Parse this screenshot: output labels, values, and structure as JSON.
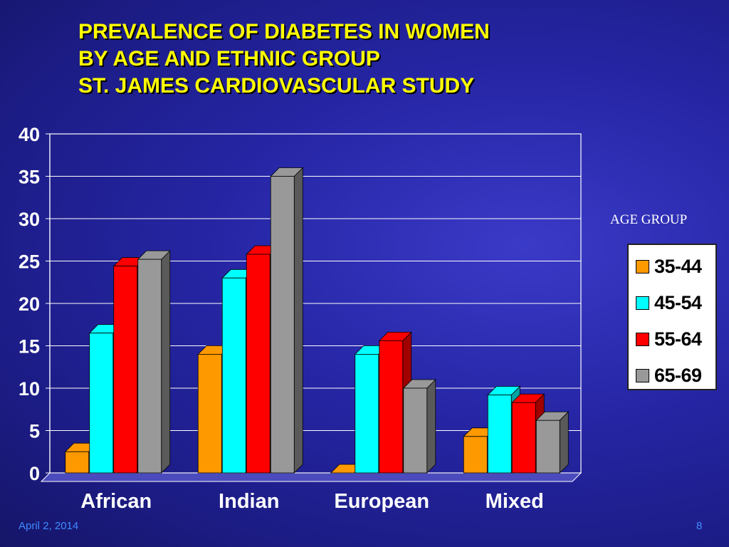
{
  "title_lines": [
    "PREVALENCE  OF  DIABETES  IN WOMEN",
    "BY  AGE  AND  ETHNIC  GROUP",
    "ST. JAMES  CARDIOVASCULAR  STUDY"
  ],
  "legend": {
    "title": "AGE GROUP",
    "items": [
      {
        "label": "35-44",
        "color": "#ff9900"
      },
      {
        "label": "45-54",
        "color": "#00ffff"
      },
      {
        "label": "55-64",
        "color": "#ff0000"
      },
      {
        "label": "65-69",
        "color": "#999999"
      }
    ]
  },
  "footer": {
    "date": "April 2, 2014",
    "page": "8"
  },
  "chart_data": {
    "type": "bar",
    "categories": [
      "African",
      "Indian",
      "European",
      "Mixed"
    ],
    "series": [
      {
        "name": "35-44",
        "color": "#ff9900",
        "side_color": "#b86a00",
        "values": [
          2.5,
          14,
          0,
          4.3
        ]
      },
      {
        "name": "45-54",
        "color": "#00ffff",
        "side_color": "#00a3a3",
        "values": [
          16.5,
          23,
          14,
          9.2
        ]
      },
      {
        "name": "55-64",
        "color": "#ff0000",
        "side_color": "#a00000",
        "values": [
          24.4,
          25.8,
          15.6,
          8.3
        ]
      },
      {
        "name": "65-69",
        "color": "#999999",
        "side_color": "#5a5a5a",
        "values": [
          25.2,
          35,
          10,
          6.2
        ]
      }
    ],
    "yticks": [
      0,
      5,
      10,
      15,
      20,
      25,
      30,
      35,
      40
    ],
    "ylim": [
      0,
      40
    ],
    "grid": true,
    "legend_position": "right"
  }
}
